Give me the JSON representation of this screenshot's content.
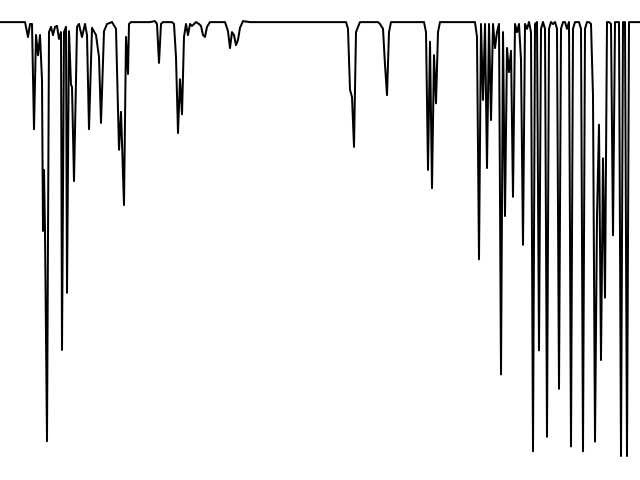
{
  "chart_data": {
    "type": "line",
    "title": "",
    "xlabel": "",
    "ylabel": "",
    "xlim": [
      0,
      640
    ],
    "ylim": [
      0,
      100
    ],
    "grid": false,
    "legend": "none",
    "series": [
      {
        "color": "#000000",
        "points": [
          [
            0,
            95.4
          ],
          [
            5,
            95.4
          ],
          [
            12,
            95.4
          ],
          [
            20,
            95.4
          ],
          [
            25,
            95.4
          ],
          [
            28,
            92.3
          ],
          [
            30,
            95.0
          ],
          [
            32,
            95.0
          ],
          [
            34,
            73.1
          ],
          [
            36,
            92.7
          ],
          [
            38,
            88.5
          ],
          [
            40,
            92.7
          ],
          [
            42,
            83.3
          ],
          [
            43,
            51.9
          ],
          [
            44,
            64.6
          ],
          [
            45,
            51.9
          ],
          [
            47,
            8.1
          ],
          [
            49,
            93.3
          ],
          [
            51,
            94.4
          ],
          [
            53,
            92.7
          ],
          [
            55,
            94.4
          ],
          [
            57,
            94.6
          ],
          [
            59,
            91.9
          ],
          [
            61,
            93.3
          ],
          [
            62,
            27.1
          ],
          [
            64,
            93.3
          ],
          [
            66,
            94.4
          ],
          [
            67,
            39.0
          ],
          [
            69,
            93.5
          ],
          [
            71,
            82.3
          ],
          [
            72,
            81.9
          ],
          [
            74,
            62.3
          ],
          [
            76,
            83.3
          ],
          [
            77,
            94.4
          ],
          [
            79,
            95.0
          ],
          [
            80,
            94.0
          ],
          [
            82,
            92.3
          ],
          [
            85,
            95.0
          ],
          [
            87,
            92.7
          ],
          [
            89,
            73.1
          ],
          [
            92,
            94.2
          ],
          [
            96,
            92.7
          ],
          [
            99,
            88.1
          ],
          [
            101,
            74.4
          ],
          [
            104,
            93.5
          ],
          [
            107,
            95.0
          ],
          [
            112,
            95.4
          ],
          [
            116,
            94.0
          ],
          [
            119,
            68.8
          ],
          [
            121,
            76.7
          ],
          [
            124,
            57.3
          ],
          [
            126,
            92.3
          ],
          [
            128,
            84.6
          ],
          [
            129,
            95.0
          ],
          [
            131,
            95.4
          ],
          [
            135,
            95.4
          ],
          [
            140,
            95.4
          ],
          [
            145,
            95.4
          ],
          [
            150,
            95.4
          ],
          [
            155,
            95.6
          ],
          [
            157,
            95.0
          ],
          [
            159,
            86.9
          ],
          [
            161,
            95.0
          ],
          [
            163,
            95.4
          ],
          [
            168,
            95.4
          ],
          [
            172,
            95.4
          ],
          [
            174,
            95.0
          ],
          [
            176,
            88.1
          ],
          [
            178,
            72.3
          ],
          [
            180,
            83.5
          ],
          [
            182,
            76.2
          ],
          [
            184,
            92.3
          ],
          [
            186,
            95.0
          ],
          [
            188,
            92.7
          ],
          [
            190,
            95.0
          ],
          [
            192,
            94.6
          ],
          [
            194,
            95.0
          ],
          [
            196,
            95.4
          ],
          [
            199,
            95.0
          ],
          [
            201,
            94.6
          ],
          [
            203,
            92.7
          ],
          [
            205,
            92.3
          ],
          [
            207,
            94.4
          ],
          [
            210,
            95.4
          ],
          [
            215,
            95.4
          ],
          [
            220,
            95.4
          ],
          [
            225,
            95.4
          ],
          [
            228,
            93.5
          ],
          [
            230,
            90.0
          ],
          [
            232,
            93.3
          ],
          [
            234,
            92.7
          ],
          [
            236,
            90.6
          ],
          [
            238,
            91.7
          ],
          [
            240,
            94.2
          ],
          [
            243,
            95.6
          ],
          [
            250,
            95.4
          ],
          [
            260,
            95.4
          ],
          [
            270,
            95.4
          ],
          [
            280,
            95.4
          ],
          [
            290,
            95.4
          ],
          [
            300,
            95.4
          ],
          [
            310,
            95.4
          ],
          [
            320,
            95.4
          ],
          [
            330,
            95.4
          ],
          [
            340,
            95.4
          ],
          [
            346,
            95.4
          ],
          [
            348,
            94.0
          ],
          [
            350,
            81.3
          ],
          [
            352,
            79.8
          ],
          [
            354,
            69.4
          ],
          [
            356,
            93.3
          ],
          [
            358,
            94.4
          ],
          [
            360,
            95.4
          ],
          [
            365,
            95.4
          ],
          [
            370,
            95.4
          ],
          [
            375,
            95.4
          ],
          [
            378,
            95.4
          ],
          [
            380,
            95.0
          ],
          [
            383,
            94.0
          ],
          [
            385,
            86.5
          ],
          [
            387,
            80.2
          ],
          [
            389,
            93.3
          ],
          [
            391,
            95.4
          ],
          [
            396,
            95.4
          ],
          [
            400,
            95.4
          ],
          [
            405,
            95.4
          ],
          [
            410,
            95.4
          ],
          [
            415,
            95.4
          ],
          [
            420,
            95.4
          ],
          [
            424,
            95.4
          ],
          [
            426,
            93.3
          ],
          [
            428,
            64.6
          ],
          [
            430,
            91.3
          ],
          [
            432,
            60.8
          ],
          [
            434,
            88.5
          ],
          [
            436,
            78.5
          ],
          [
            438,
            93.3
          ],
          [
            440,
            95.4
          ],
          [
            445,
            95.4
          ],
          [
            450,
            95.4
          ],
          [
            455,
            95.4
          ],
          [
            460,
            95.4
          ],
          [
            465,
            95.4
          ],
          [
            470,
            95.4
          ],
          [
            475,
            95.4
          ],
          [
            477,
            92.3
          ],
          [
            479,
            46.0
          ],
          [
            481,
            95.0
          ],
          [
            483,
            79.2
          ],
          [
            485,
            95.0
          ],
          [
            487,
            65.0
          ],
          [
            489,
            95.0
          ],
          [
            491,
            75.0
          ],
          [
            493,
            95.0
          ],
          [
            495,
            90.0
          ],
          [
            497,
            93.3
          ],
          [
            499,
            95.0
          ],
          [
            501,
            22.0
          ],
          [
            503,
            93.3
          ],
          [
            505,
            55.0
          ],
          [
            507,
            90.0
          ],
          [
            509,
            85.0
          ],
          [
            511,
            89.4
          ],
          [
            513,
            59.0
          ],
          [
            515,
            95.0
          ],
          [
            517,
            93.3
          ],
          [
            519,
            95.0
          ],
          [
            521,
            87.5
          ],
          [
            523,
            49.0
          ],
          [
            525,
            95.0
          ],
          [
            527,
            94.0
          ],
          [
            529,
            95.4
          ],
          [
            531,
            93.3
          ],
          [
            533,
            6.0
          ],
          [
            535,
            95.0
          ],
          [
            537,
            95.4
          ],
          [
            539,
            27.0
          ],
          [
            541,
            94.0
          ],
          [
            543,
            95.4
          ],
          [
            545,
            94.0
          ],
          [
            547,
            9.0
          ],
          [
            549,
            94.0
          ],
          [
            551,
            95.4
          ],
          [
            553,
            95.0
          ],
          [
            555,
            95.4
          ],
          [
            557,
            94.0
          ],
          [
            559,
            19.0
          ],
          [
            561,
            94.0
          ],
          [
            563,
            95.4
          ],
          [
            565,
            95.4
          ],
          [
            567,
            94.0
          ],
          [
            569,
            95.4
          ],
          [
            571,
            7.0
          ],
          [
            573,
            94.0
          ],
          [
            575,
            95.4
          ],
          [
            577,
            95.4
          ],
          [
            579,
            95.4
          ],
          [
            581,
            94.0
          ],
          [
            583,
            6.0
          ],
          [
            585,
            94.0
          ],
          [
            587,
            95.4
          ],
          [
            589,
            95.4
          ],
          [
            591,
            95.0
          ],
          [
            593,
            80.0
          ],
          [
            595,
            8.0
          ],
          [
            597,
            55.0
          ],
          [
            599,
            74.0
          ],
          [
            601,
            25.0
          ],
          [
            603,
            67.0
          ],
          [
            605,
            38.0
          ],
          [
            607,
            95.4
          ],
          [
            609,
            95.4
          ],
          [
            611,
            95.0
          ],
          [
            613,
            51.0
          ],
          [
            615,
            95.4
          ],
          [
            617,
            95.4
          ],
          [
            619,
            95.4
          ],
          [
            621,
            5.0
          ],
          [
            623,
            95.4
          ],
          [
            625,
            95.4
          ],
          [
            627,
            5.0
          ],
          [
            629,
            95.4
          ],
          [
            632,
            95.4
          ],
          [
            636,
            95.4
          ],
          [
            640,
            95.4
          ]
        ]
      }
    ]
  }
}
